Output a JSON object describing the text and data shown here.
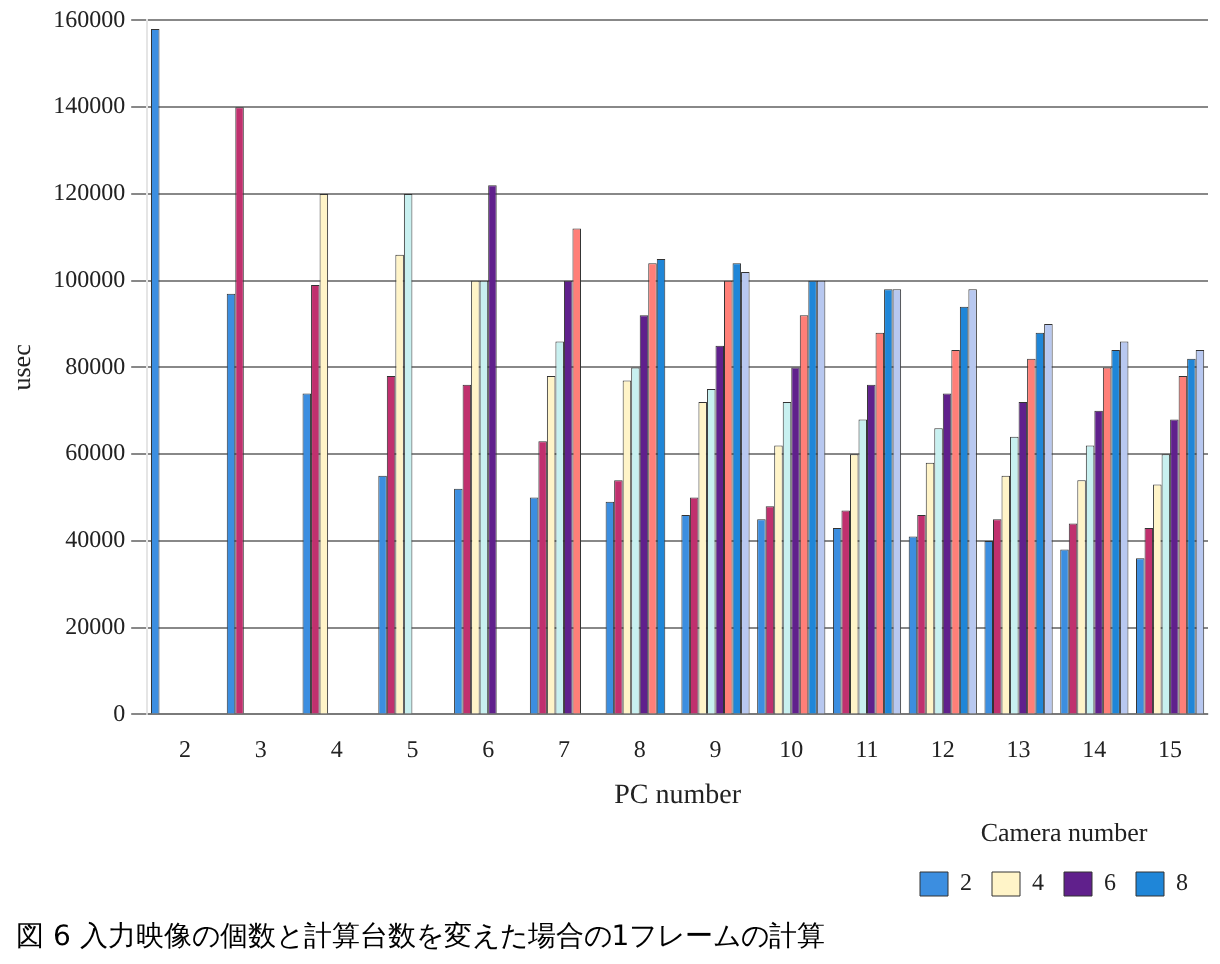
{
  "chart_data": {
    "type": "bar",
    "xlabel": "PC number",
    "ylabel": "usec",
    "legend_title": "Camera number",
    "categories": [
      "2",
      "3",
      "4",
      "5",
      "6",
      "7",
      "8",
      "9",
      "10",
      "11",
      "12",
      "13",
      "14",
      "15"
    ],
    "series": [
      {
        "name": "2",
        "color": "#3c8ee0",
        "values": [
          158000,
          97000,
          74000,
          55000,
          52000,
          50000,
          49000,
          46000,
          45000,
          43000,
          41000,
          40000,
          38000,
          36000
        ]
      },
      {
        "color": "#c0306e",
        "values": [
          null,
          140000,
          99000,
          78000,
          76000,
          63000,
          54000,
          50000,
          48000,
          47000,
          46000,
          45000,
          44000,
          43000
        ]
      },
      {
        "name": "4",
        "color": "#fff4c8",
        "values": [
          null,
          null,
          120000,
          106000,
          100000,
          78000,
          77000,
          72000,
          62000,
          60000,
          58000,
          55000,
          54000,
          53000
        ]
      },
      {
        "color": "#c8f0f0",
        "values": [
          null,
          null,
          null,
          120000,
          100000,
          86000,
          80000,
          75000,
          72000,
          68000,
          66000,
          64000,
          62000,
          60000
        ]
      },
      {
        "name": "6",
        "color": "#60208c",
        "values": [
          null,
          null,
          null,
          null,
          122000,
          100000,
          92000,
          85000,
          80000,
          76000,
          74000,
          72000,
          70000,
          68000
        ]
      },
      {
        "color": "#ff7f78",
        "values": [
          null,
          null,
          null,
          null,
          null,
          112000,
          104000,
          100000,
          92000,
          88000,
          84000,
          82000,
          80000,
          78000
        ]
      },
      {
        "name": "8",
        "color": "#1f86d8",
        "values": [
          null,
          null,
          null,
          null,
          null,
          null,
          105000,
          104000,
          100000,
          98000,
          94000,
          88000,
          84000,
          82000
        ]
      },
      {
        "color": "#b8c8f0",
        "values": [
          null,
          null,
          null,
          null,
          null,
          null,
          null,
          102000,
          100000,
          98000,
          98000,
          90000,
          86000,
          84000
        ]
      }
    ],
    "ylim": [
      0,
      160000
    ],
    "yticks": [
      0,
      20000,
      40000,
      60000,
      80000,
      100000,
      120000,
      140000,
      160000
    ],
    "grid": "y",
    "legend": "bottom right",
    "annotations": [
      "図 6 入力映像の個数と計算台数を変えた場合の1フレームの計算"
    ]
  }
}
